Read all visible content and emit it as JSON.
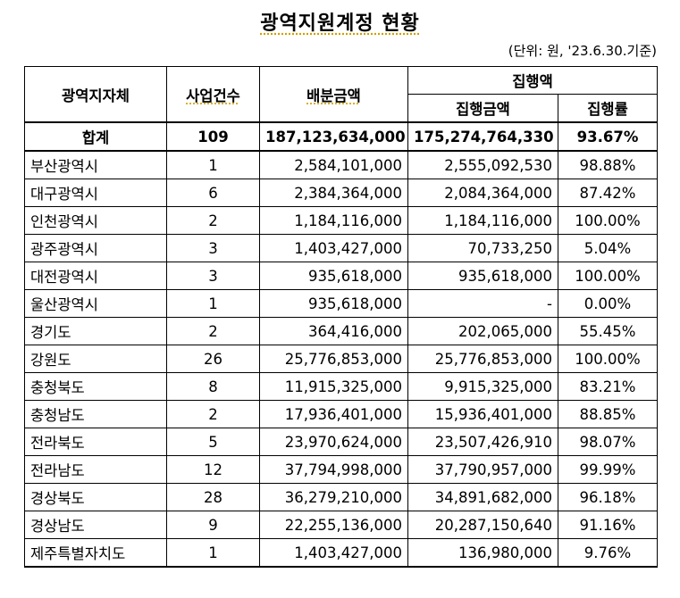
{
  "title": "광역지원계정 현황",
  "unit": "(단위: 원, '23.6.30.기준)",
  "headers": {
    "region": "광역지자체",
    "count": "사업건수",
    "allocated": "배분금액",
    "execution": "집행액",
    "exec_amount": "집행금액",
    "exec_rate": "집행률"
  },
  "total": {
    "name": "합계",
    "count": "109",
    "allocated": "187,123,634,000",
    "exec_amount": "175,274,764,330",
    "exec_rate": "93.67%"
  },
  "rows": [
    {
      "name": "부산광역시",
      "count": "1",
      "allocated": "2,584,101,000",
      "exec_amount": "2,555,092,530",
      "exec_rate": "98.88%"
    },
    {
      "name": "대구광역시",
      "count": "6",
      "allocated": "2,384,364,000",
      "exec_amount": "2,084,364,000",
      "exec_rate": "87.42%"
    },
    {
      "name": "인천광역시",
      "count": "2",
      "allocated": "1,184,116,000",
      "exec_amount": "1,184,116,000",
      "exec_rate": "100.00%"
    },
    {
      "name": "광주광역시",
      "count": "3",
      "allocated": "1,403,427,000",
      "exec_amount": "70,733,250",
      "exec_rate": "5.04%"
    },
    {
      "name": "대전광역시",
      "count": "3",
      "allocated": "935,618,000",
      "exec_amount": "935,618,000",
      "exec_rate": "100.00%"
    },
    {
      "name": "울산광역시",
      "count": "1",
      "allocated": "935,618,000",
      "exec_amount": "-",
      "exec_rate": "0.00%"
    },
    {
      "name": "경기도",
      "count": "2",
      "allocated": "364,416,000",
      "exec_amount": "202,065,000",
      "exec_rate": "55.45%"
    },
    {
      "name": "강원도",
      "count": "26",
      "allocated": "25,776,853,000",
      "exec_amount": "25,776,853,000",
      "exec_rate": "100.00%"
    },
    {
      "name": "충청북도",
      "count": "8",
      "allocated": "11,915,325,000",
      "exec_amount": "9,915,325,000",
      "exec_rate": "83.21%"
    },
    {
      "name": "충청남도",
      "count": "2",
      "allocated": "17,936,401,000",
      "exec_amount": "15,936,401,000",
      "exec_rate": "88.85%"
    },
    {
      "name": "전라북도",
      "count": "5",
      "allocated": "23,970,624,000",
      "exec_amount": "23,507,426,910",
      "exec_rate": "98.07%"
    },
    {
      "name": "전라남도",
      "count": "12",
      "allocated": "37,794,998,000",
      "exec_amount": "37,790,957,000",
      "exec_rate": "99.99%"
    },
    {
      "name": "경상북도",
      "count": "28",
      "allocated": "36,279,210,000",
      "exec_amount": "34,891,682,000",
      "exec_rate": "96.18%"
    },
    {
      "name": "경상남도",
      "count": "9",
      "allocated": "22,255,136,000",
      "exec_amount": "20,287,150,640",
      "exec_rate": "91.16%"
    },
    {
      "name": "제주특별자치도",
      "count": "1",
      "allocated": "1,403,427,000",
      "exec_amount": "136,980,000",
      "exec_rate": "9.76%"
    }
  ]
}
